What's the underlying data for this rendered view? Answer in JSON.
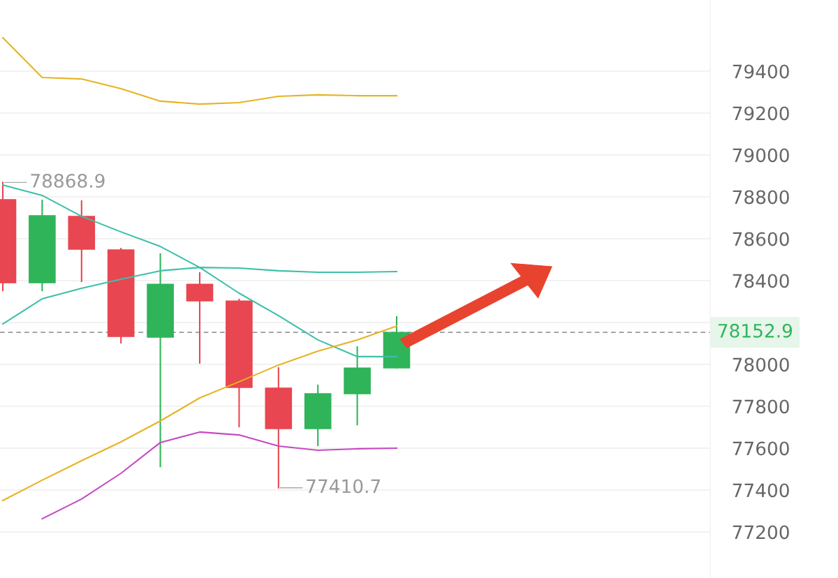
{
  "chart_data": {
    "type": "candlestick",
    "categories": [
      null,
      null,
      null,
      null,
      null,
      null,
      null,
      null,
      null,
      null,
      null
    ],
    "ohlc": [
      [
        78787,
        78868.9,
        78353,
        78390
      ],
      [
        78390,
        78783,
        78353,
        78710
      ],
      [
        78707,
        78780,
        78397,
        78550
      ],
      [
        78547,
        78553,
        78103,
        78133
      ],
      [
        78130,
        78527,
        77513,
        78383
      ],
      [
        78383,
        78437,
        78007,
        78303
      ],
      [
        78303,
        78310,
        77703,
        77890
      ],
      [
        77887,
        77983,
        77410.7,
        77693
      ],
      [
        77693,
        77900,
        77613,
        77860
      ],
      [
        77860,
        78083,
        77713,
        77983
      ],
      [
        77983,
        78227,
        77983,
        78152.9
      ]
    ],
    "colors": [
      "#e84650",
      "#2fb45a",
      "#e84650",
      "#e84650",
      "#2fb45a",
      "#e84650",
      "#e84650",
      "#e84650",
      "#2fb45a",
      "#2fb45a",
      "#2fb45a"
    ],
    "series": [
      {
        "type": "line",
        "color": "#e6b422",
        "values": [
          79560,
          79370,
          79363,
          79317,
          79257,
          79243,
          79250,
          79280,
          79287,
          79283,
          79283
        ]
      },
      {
        "type": "line",
        "color": "#3cc0a8",
        "values": [
          78193,
          78313,
          78363,
          78407,
          78447,
          78463,
          78460,
          78447,
          78440,
          78440,
          78443
        ]
      },
      {
        "type": "line",
        "color": "#3cc0a8",
        "values": [
          78857,
          78807,
          78707,
          78633,
          78563,
          78463,
          78340,
          78233,
          78117,
          78037,
          78037
        ]
      },
      {
        "type": "line",
        "color": "#e6b422",
        "values": [
          77350,
          77447,
          77540,
          77630,
          77730,
          77840,
          77917,
          77997,
          78063,
          78117,
          78183
        ]
      },
      {
        "type": "line",
        "color": "#c54ac0",
        "values": [
          null,
          77263,
          77357,
          77480,
          77627,
          77677,
          77663,
          77610,
          77590,
          77597,
          77600
        ]
      }
    ],
    "ylim": [
      76980,
      79740
    ],
    "yticks": [
      77200,
      77400,
      77600,
      77800,
      78000,
      {
        "value": 78200,
        "label": null
      },
      78400,
      78600,
      78800,
      79000,
      79200,
      79400
    ],
    "ref_lines": [
      {
        "axis": "y",
        "value": 78152.9,
        "label": "78152.9",
        "color": "#999999",
        "line_style": "dashed"
      }
    ],
    "annotations": [
      "78868.9",
      "77410.7"
    ],
    "grid": "y",
    "legend": false,
    "tick_labels": "y"
  }
}
